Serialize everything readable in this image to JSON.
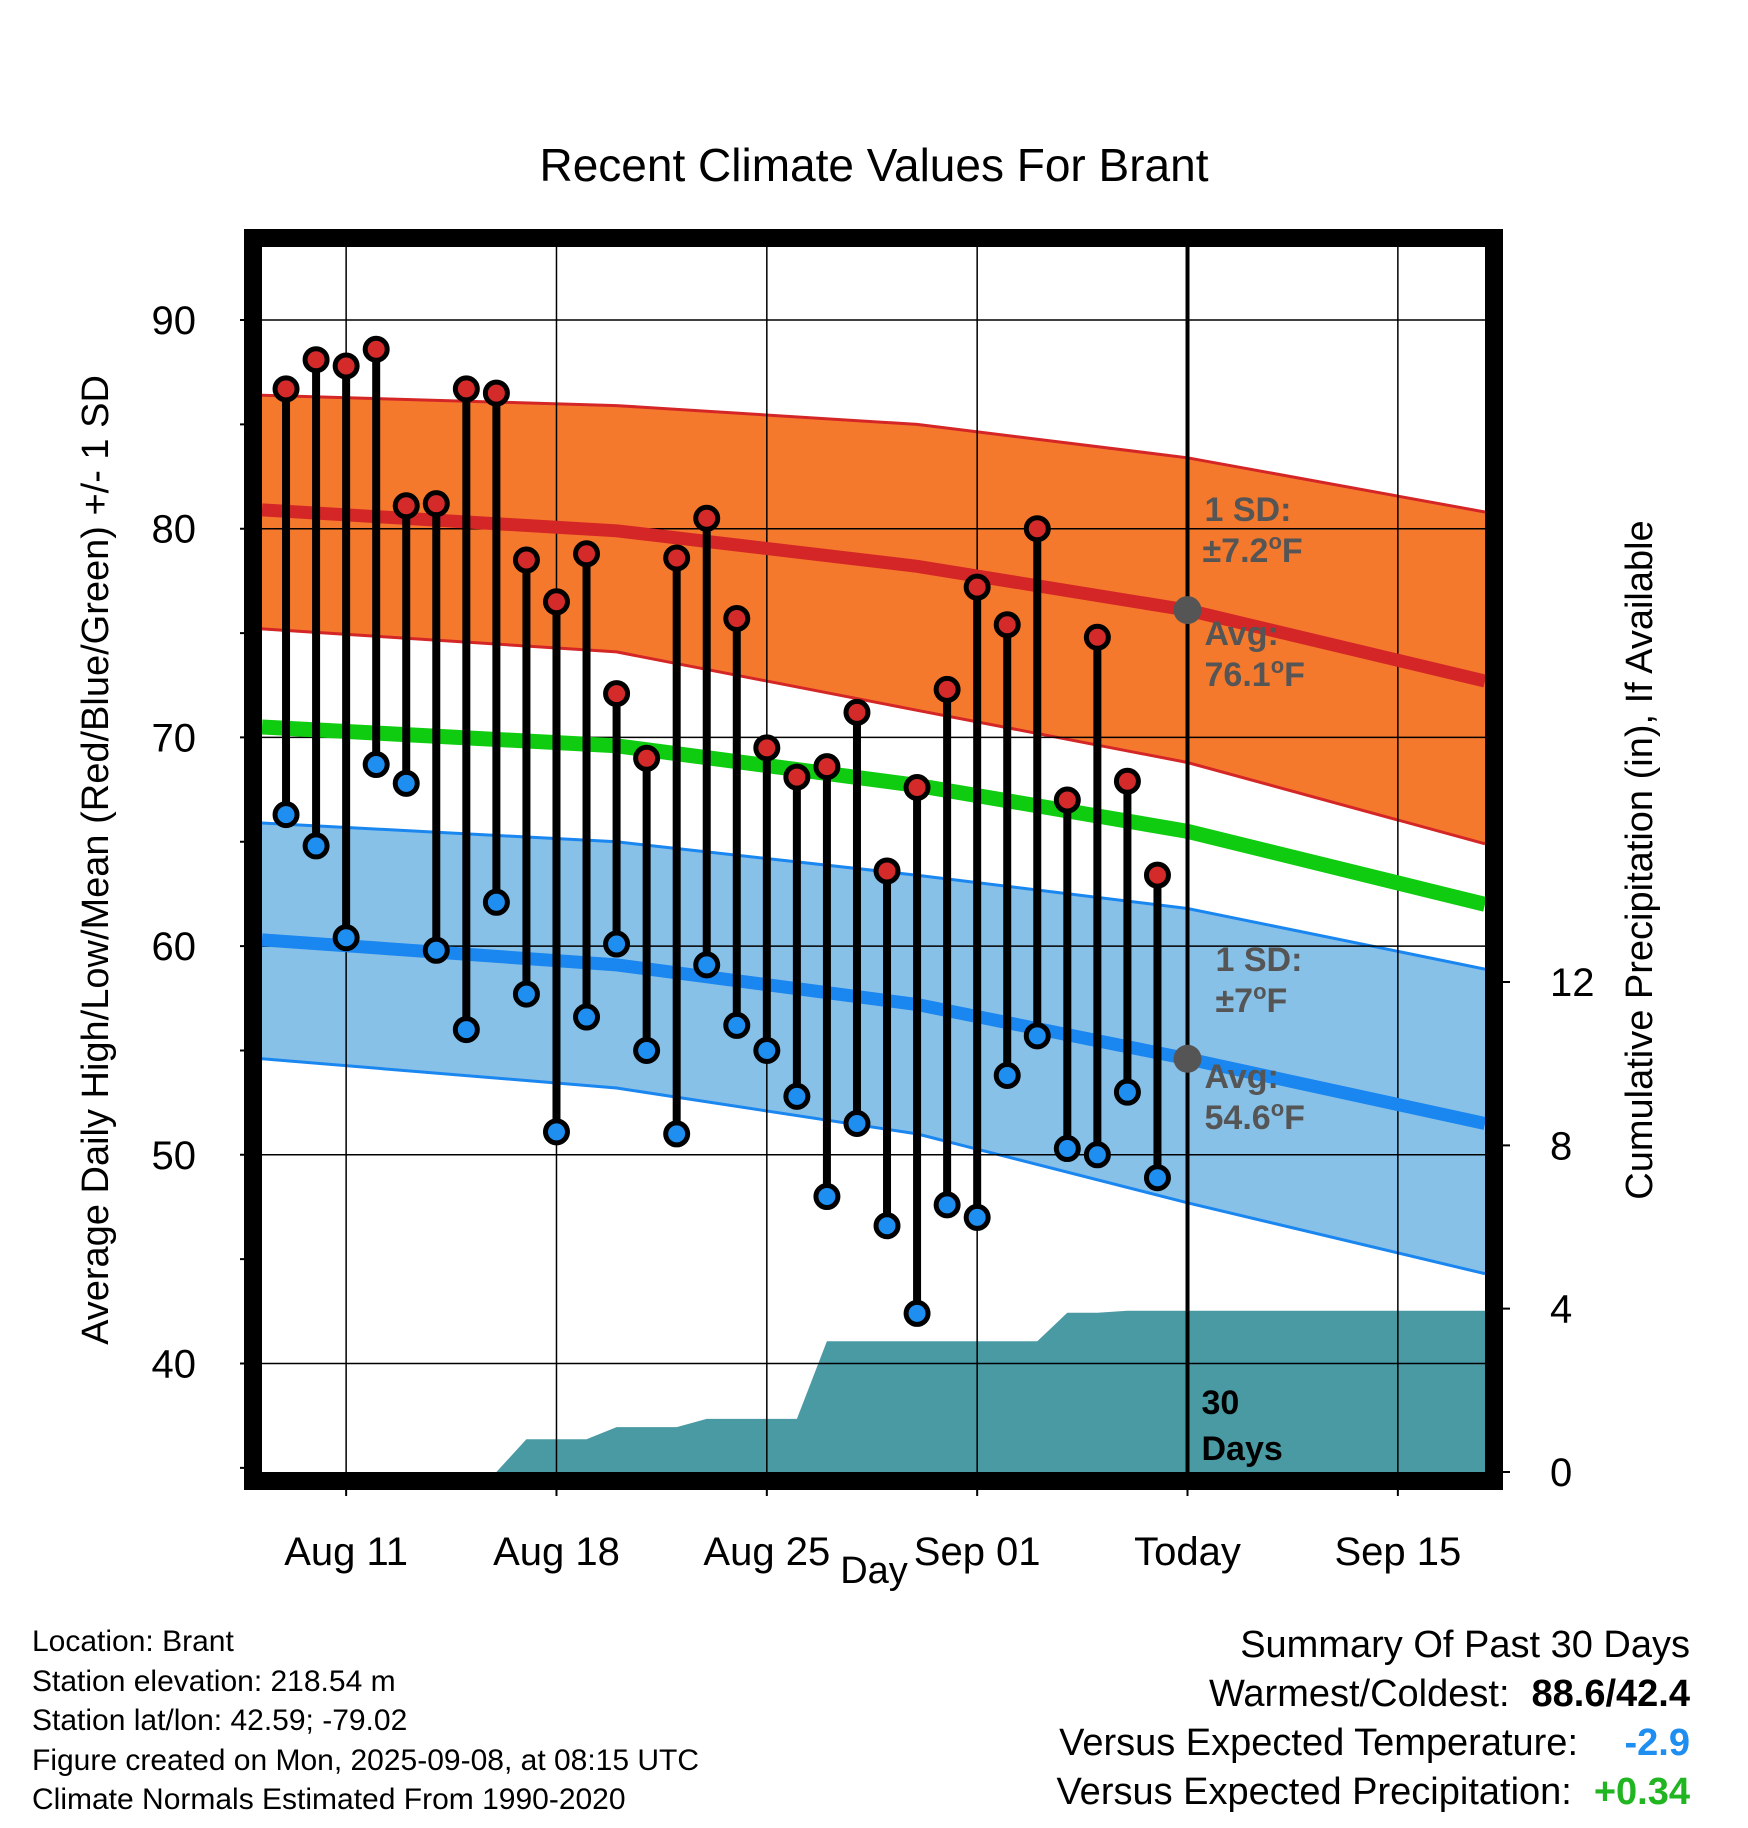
{
  "chart_data": {
    "type": "line",
    "title": "Recent Climate Values For Brant",
    "xlabel": "Day",
    "ylabel": "Average Daily High/Low/Mean (Red/Blue/Green) +/- 1 SD",
    "y2label": "Cumulative Precipitation (in), If Available",
    "ylim": [
      34.8,
      93.5
    ],
    "y2lim": [
      0,
      30
    ],
    "y_ticks": [
      40,
      50,
      60,
      70,
      80,
      90
    ],
    "y2_ticks": [
      0,
      4,
      8,
      12
    ],
    "x_ticks": [
      {
        "day": 11,
        "label": "Aug 11"
      },
      {
        "day": 18,
        "label": "Aug 18"
      },
      {
        "day": 25,
        "label": "Aug 25"
      },
      {
        "day": 32,
        "label": "Sep 01"
      },
      {
        "day": 39,
        "label": "Today"
      },
      {
        "day": 46,
        "label": "Sep 15"
      }
    ],
    "xlim": [
      8.2,
      48.9
    ],
    "today_day": 39,
    "grid": true,
    "normals": {
      "x": [
        8.2,
        20,
        30,
        39,
        48.9
      ],
      "high_avg": [
        80.9,
        79.9,
        78.2,
        76.1,
        72.7
      ],
      "high_upper": [
        86.4,
        85.9,
        85.0,
        83.4,
        80.8
      ],
      "high_lower": [
        75.2,
        74.1,
        71.3,
        68.8,
        64.9
      ],
      "mean_avg": [
        70.5,
        69.6,
        67.7,
        65.5,
        62.0
      ],
      "low_avg": [
        60.3,
        59.1,
        57.2,
        54.6,
        51.5
      ],
      "low_upper": [
        65.9,
        65.0,
        63.4,
        61.8,
        58.9
      ],
      "low_lower": [
        54.6,
        53.2,
        51.0,
        47.7,
        44.3
      ]
    },
    "observed": {
      "x": [
        9,
        10,
        11,
        12,
        13,
        14,
        15,
        16,
        17,
        18,
        19,
        20,
        21,
        22,
        23,
        24,
        25,
        26,
        27,
        28,
        29,
        30,
        31,
        32,
        33,
        34,
        35,
        36,
        37,
        38
      ],
      "high": [
        86.7,
        88.1,
        87.8,
        88.6,
        81.1,
        81.2,
        86.7,
        86.5,
        78.5,
        76.5,
        78.8,
        72.1,
        69.0,
        78.6,
        80.5,
        75.7,
        69.5,
        68.1,
        68.6,
        71.2,
        63.6,
        67.6,
        72.3,
        77.2,
        75.4,
        80.0,
        67.0,
        74.8,
        67.9,
        63.4
      ],
      "low": [
        66.3,
        64.8,
        60.4,
        68.7,
        67.8,
        59.8,
        56.0,
        62.1,
        57.7,
        51.1,
        56.6,
        60.1,
        55.0,
        51.0,
        59.1,
        56.2,
        55.0,
        52.8,
        48.0,
        51.5,
        46.6,
        42.4,
        47.6,
        47.0,
        53.8,
        55.7,
        50.3,
        50.0,
        53.0,
        48.9
      ]
    },
    "precip": {
      "x": [
        16,
        17,
        18,
        19,
        20,
        21,
        22,
        23,
        24,
        25,
        26,
        27,
        28,
        29,
        30,
        31,
        32,
        33,
        34,
        35,
        36,
        37,
        38,
        39,
        48.9
      ],
      "y": [
        0,
        0.8,
        0.8,
        0.8,
        1.1,
        1.1,
        1.1,
        1.3,
        1.3,
        1.3,
        1.3,
        3.2,
        3.2,
        3.2,
        3.2,
        3.2,
        3.2,
        3.2,
        3.2,
        3.9,
        3.9,
        3.95,
        3.95,
        3.95,
        3.95
      ]
    },
    "annotations": {
      "high_sd_label": "1 SD:",
      "high_sd_value": "±7.2",
      "high_avg_label": "Avg:",
      "high_avg_value": "76.1",
      "low_sd_label": "1 SD:",
      "low_sd_value": "±7",
      "low_avg_label": "Avg:",
      "low_avg_value": "54.6",
      "degree": "o",
      "unit": "F",
      "days_num": "30",
      "days_word": "Days"
    },
    "colors": {
      "high_band": "#f5792d",
      "high_line": "#d42626",
      "low_band": "#88c1e8",
      "low_line": "#1a86f0",
      "mean_line": "#10cc10",
      "precip": "#4a9aa4",
      "annotation": "#555555"
    }
  },
  "footer": {
    "location": "Location: Brant",
    "elevation": "Station elevation: 218.54 m",
    "latlon": "Station lat/lon: 42.59; -79.02",
    "created": "Figure created on Mon, 2025-09-08, at 08:15 UTC",
    "normals": "Climate Normals Estimated From 1990-2020"
  },
  "summary": {
    "title": "Summary Of Past 30 Days",
    "warmest_label": "Warmest/Coldest:",
    "warmest_value": "88.6/42.4",
    "temp_label": "Versus Expected Temperature:",
    "temp_value": "-2.9",
    "temp_color": "#1f8ef1",
    "precip_label": "Versus Expected Precipitation:",
    "precip_value": "+0.34",
    "precip_color": "#22b522"
  }
}
